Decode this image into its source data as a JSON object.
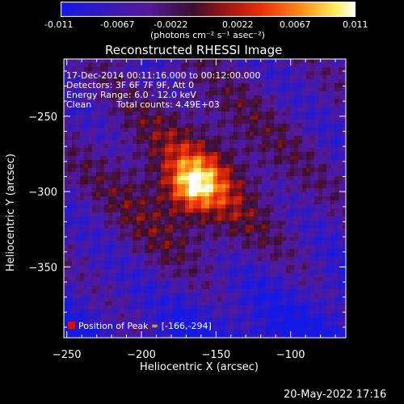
{
  "chart_data": {
    "type": "heatmap",
    "title": "Reconstructed RHESSI Image",
    "xlabel": "Heliocentric X (arcsec)",
    "ylabel": "Heliocentric Y (arcsec)",
    "xlim": [
      -252,
      -63
    ],
    "ylim": [
      -397,
      -212
    ],
    "x_ticks": [
      -250,
      -200,
      -150,
      -100
    ],
    "y_ticks": [
      -250,
      -300,
      -350
    ],
    "colorbar": {
      "range": [
        -0.011,
        0.011
      ],
      "ticks": [
        "-0.011",
        "-0.0067",
        "-0.0022",
        "0.0022",
        "0.0067",
        "0.011"
      ],
      "unit_label": "(photons cm⁻² s⁻¹ asec⁻²)",
      "colormap": "purple-red-yellow-white (IDL color table 3/hot variant)"
    },
    "peak": {
      "x": -166,
      "y": -294,
      "value": 0.011
    },
    "annotations": {
      "time": "17-Dec-2014 00:11:16.000 to 00:12:00.000",
      "detectors": "Detectors: 3F 6F 7F 9F, Att 0",
      "energy": "Energy Range: 6.0 - 12.0 keV",
      "clean": "Clean",
      "counts": "Total counts: 4.49E+03",
      "peak_label": "Position of Peak = [-166,-294]"
    },
    "timestamp": "20-May-2022 17:16",
    "colors": {
      "background": "#000000",
      "text": "#ffffff"
    }
  }
}
